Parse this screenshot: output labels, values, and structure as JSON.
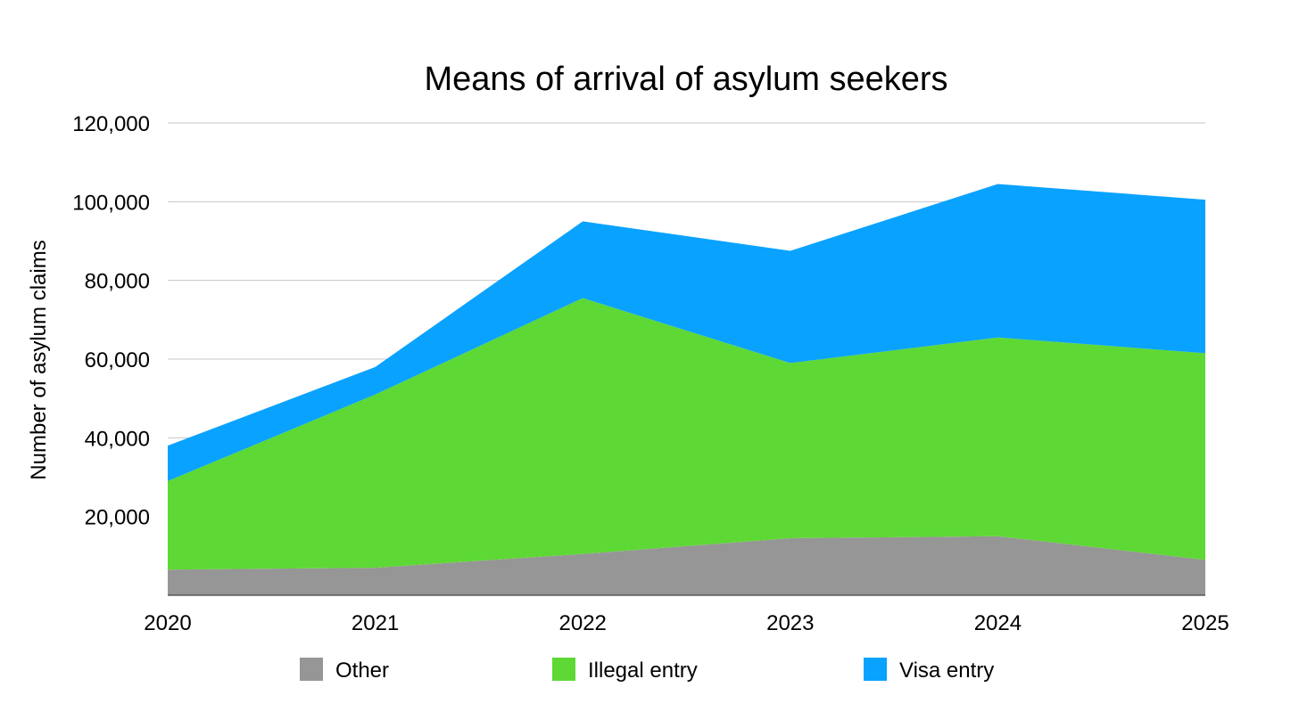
{
  "chart_data": {
    "type": "area",
    "stacked": true,
    "title": "Means of arrival of asylum seekers",
    "xlabel": "",
    "ylabel": "Number of asylum claims",
    "categories": [
      "2020",
      "2021",
      "2022",
      "2023",
      "2024",
      "2025"
    ],
    "ylim": [
      0,
      120000
    ],
    "yticks": [
      20000,
      40000,
      60000,
      80000,
      100000,
      120000
    ],
    "ytick_labels": [
      "20,000",
      "40,000",
      "60,000",
      "80,000",
      "100,000",
      "120,000"
    ],
    "grid": true,
    "legend_position": "bottom",
    "series": [
      {
        "name": "Other",
        "color": "#969696",
        "values": [
          6500,
          7000,
          10500,
          14500,
          15000,
          9000
        ]
      },
      {
        "name": "Illegal entry",
        "color": "#5ED835",
        "values": [
          22500,
          44000,
          65000,
          44500,
          50500,
          52500
        ]
      },
      {
        "name": "Visa entry",
        "color": "#0AA2FF",
        "values": [
          9000,
          7000,
          19500,
          28500,
          39000,
          39000
        ]
      }
    ]
  }
}
